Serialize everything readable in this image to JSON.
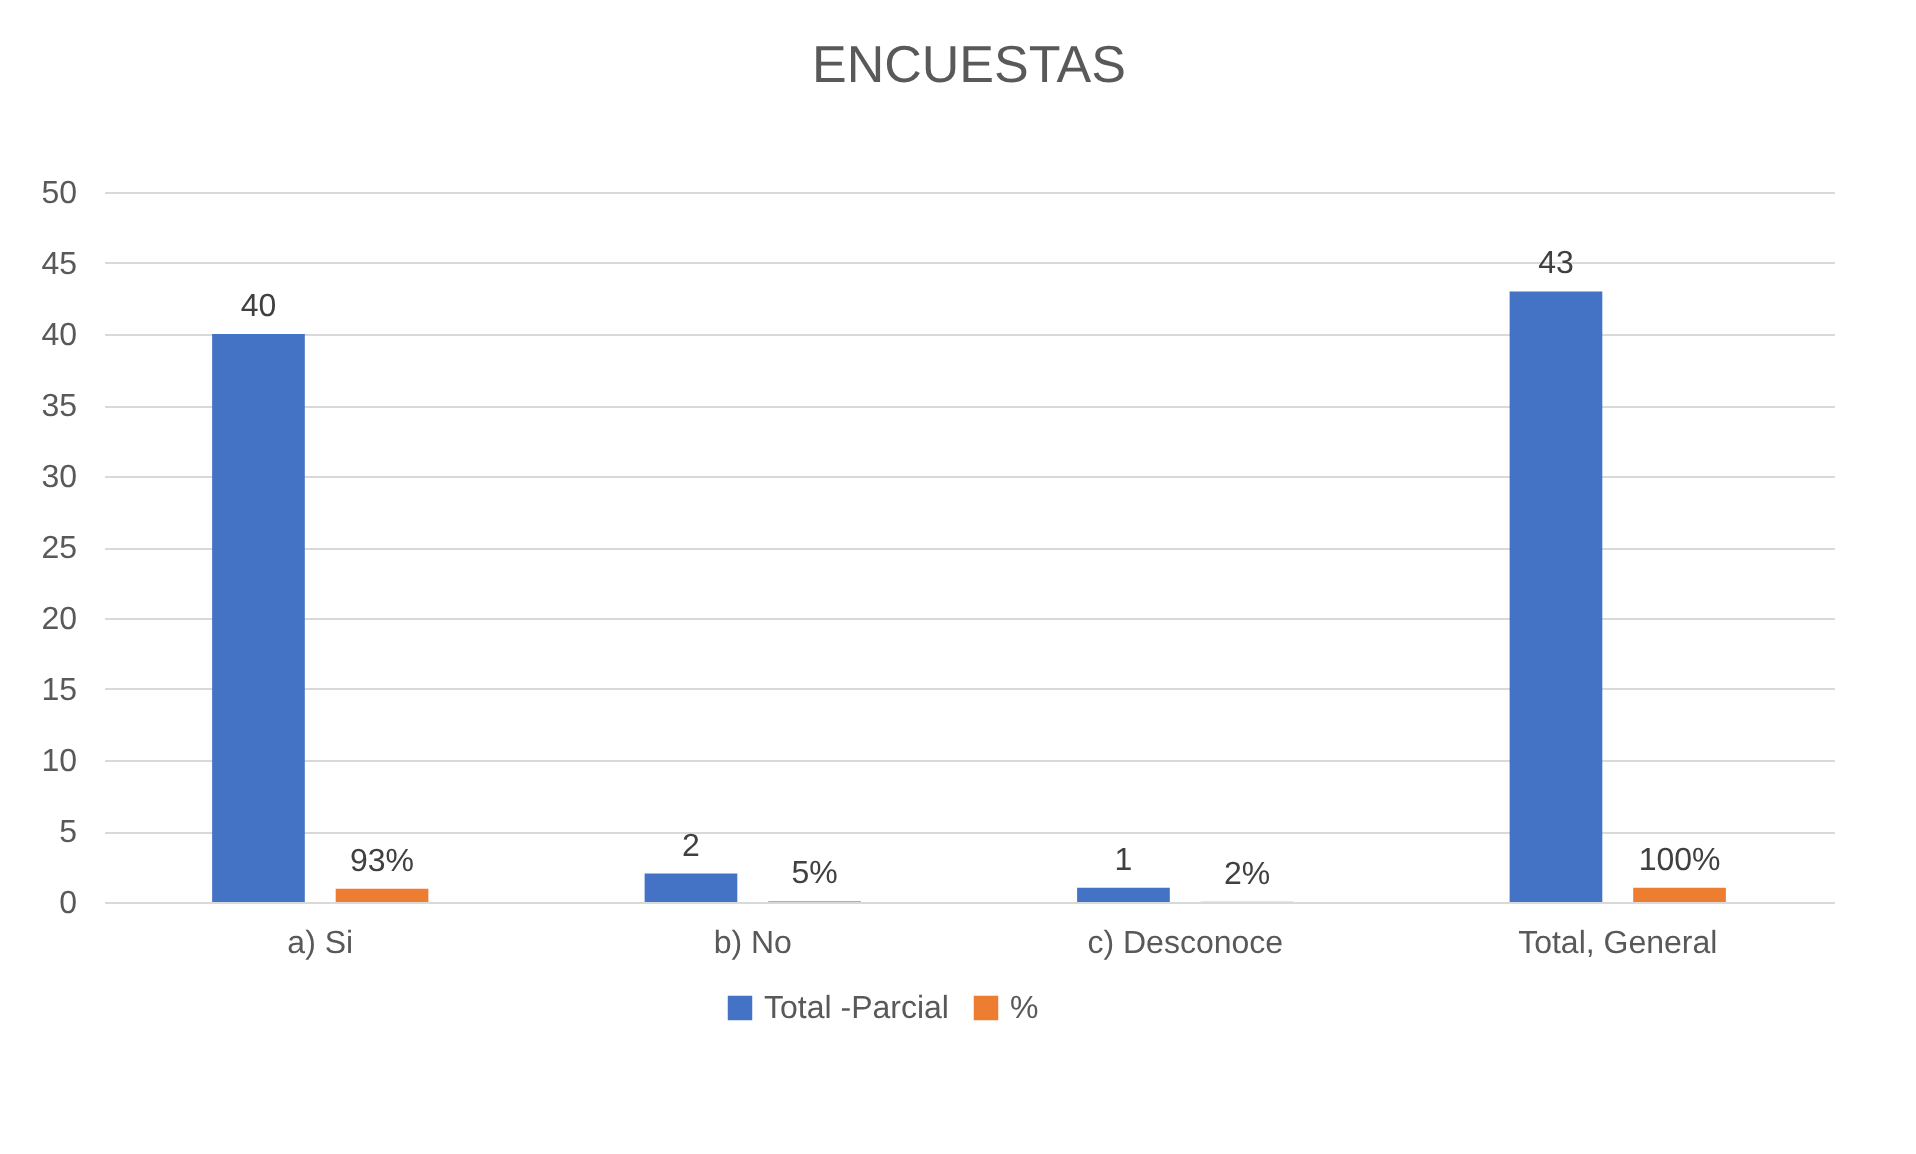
{
  "chart_data": {
    "type": "bar",
    "title": "ENCUESTAS",
    "categories": [
      "a) Si",
      "b) No",
      "c) Desconoce",
      "Total, General"
    ],
    "series": [
      {
        "name": "Total -Parcial",
        "color": "#4472c4",
        "values": [
          40,
          2,
          1,
          43
        ],
        "value_labels": [
          "40",
          "2",
          "1",
          "43"
        ]
      },
      {
        "name": "%",
        "color": "#ed7d31",
        "values": [
          0.93,
          0.05,
          0.02,
          1
        ],
        "value_labels": [
          "93%",
          "5%",
          "2%",
          "100%"
        ]
      }
    ],
    "ylim": [
      0,
      50
    ],
    "yticks": [
      0,
      5,
      10,
      15,
      20,
      25,
      30,
      35,
      40,
      45,
      50
    ],
    "grid": "y",
    "legend": "bottom"
  }
}
